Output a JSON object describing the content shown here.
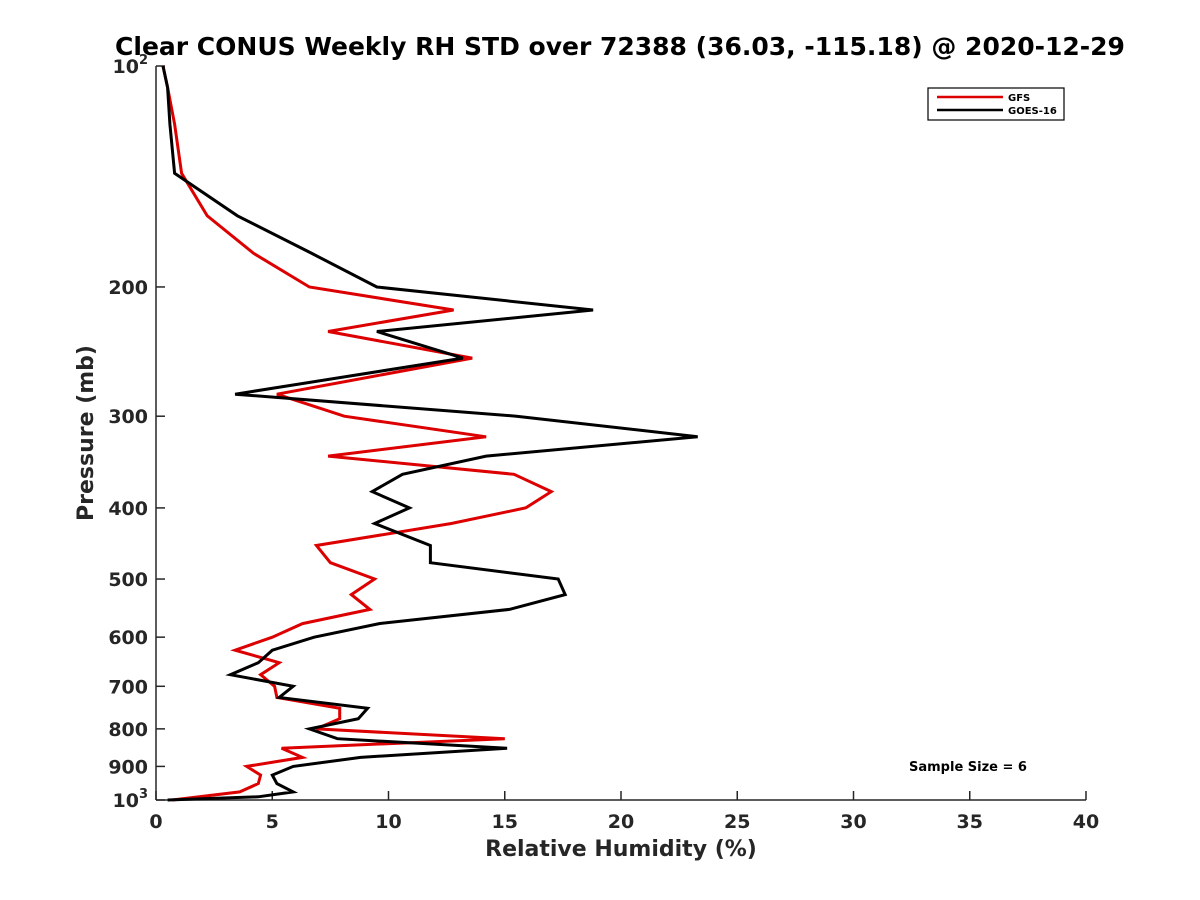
{
  "chart_data": {
    "type": "line",
    "title": "Clear CONUS Weekly RH STD over 72388 (36.03, -115.18) @ 2020-12-29",
    "xlabel": "Relative Humidity (%)",
    "ylabel": "Pressure (mb)",
    "xlim": [
      0,
      40
    ],
    "ylim": [
      100,
      1000
    ],
    "yscale": "log",
    "y_reversed": true,
    "grid": false,
    "legend_position": "top-right",
    "x_ticks": [
      0,
      5,
      10,
      15,
      20,
      25,
      30,
      35,
      40
    ],
    "x_tick_labels": [
      "0",
      "5",
      "10",
      "15",
      "20",
      "25",
      "30",
      "35",
      "40"
    ],
    "y_ticks": [
      100,
      200,
      300,
      400,
      500,
      600,
      700,
      800,
      900,
      1000
    ],
    "y_tick_labels": [
      {
        "base": "10",
        "exp": "2"
      },
      {
        "base": "200",
        "exp": ""
      },
      {
        "base": "300",
        "exp": ""
      },
      {
        "base": "400",
        "exp": ""
      },
      {
        "base": "500",
        "exp": ""
      },
      {
        "base": "600",
        "exp": ""
      },
      {
        "base": "700",
        "exp": ""
      },
      {
        "base": "800",
        "exp": ""
      },
      {
        "base": "900",
        "exp": ""
      },
      {
        "base": "10",
        "exp": "3"
      }
    ],
    "annotation": "Sample Size = 6",
    "series": [
      {
        "name": "GFS",
        "color": "#dd0000",
        "points": [
          [
            0.3,
            100
          ],
          [
            0.5,
            107
          ],
          [
            0.8,
            120
          ],
          [
            1.1,
            140
          ],
          [
            2.2,
            160
          ],
          [
            4.2,
            180
          ],
          [
            6.6,
            200
          ],
          [
            12.8,
            215
          ],
          [
            7.4,
            230
          ],
          [
            13.6,
            250
          ],
          [
            5.2,
            280
          ],
          [
            8.1,
            300
          ],
          [
            14.2,
            320
          ],
          [
            7.4,
            340
          ],
          [
            15.4,
            360
          ],
          [
            17.0,
            380
          ],
          [
            15.9,
            400
          ],
          [
            12.7,
            420
          ],
          [
            6.9,
            450
          ],
          [
            7.5,
            475
          ],
          [
            9.4,
            500
          ],
          [
            8.4,
            525
          ],
          [
            9.2,
            550
          ],
          [
            6.3,
            575
          ],
          [
            5.0,
            600
          ],
          [
            3.4,
            625
          ],
          [
            5.3,
            650
          ],
          [
            4.5,
            675
          ],
          [
            5.1,
            700
          ],
          [
            5.2,
            725
          ],
          [
            7.9,
            750
          ],
          [
            7.9,
            775
          ],
          [
            6.9,
            800
          ],
          [
            15.0,
            825
          ],
          [
            5.4,
            850
          ],
          [
            6.3,
            875
          ],
          [
            3.9,
            900
          ],
          [
            4.5,
            925
          ],
          [
            4.4,
            950
          ],
          [
            3.6,
            975
          ],
          [
            0.7,
            1000
          ]
        ]
      },
      {
        "name": "GOES-16",
        "color": "#000000",
        "points": [
          [
            0.3,
            100
          ],
          [
            0.5,
            107
          ],
          [
            0.6,
            120
          ],
          [
            0.8,
            140
          ],
          [
            3.5,
            160
          ],
          [
            6.7,
            180
          ],
          [
            9.5,
            200
          ],
          [
            18.8,
            215
          ],
          [
            9.5,
            230
          ],
          [
            13.2,
            250
          ],
          [
            3.4,
            280
          ],
          [
            15.5,
            300
          ],
          [
            23.3,
            320
          ],
          [
            14.2,
            340
          ],
          [
            10.6,
            360
          ],
          [
            9.3,
            380
          ],
          [
            10.9,
            400
          ],
          [
            9.4,
            420
          ],
          [
            11.8,
            450
          ],
          [
            11.8,
            475
          ],
          [
            17.3,
            500
          ],
          [
            17.6,
            525
          ],
          [
            15.2,
            550
          ],
          [
            9.6,
            575
          ],
          [
            6.8,
            600
          ],
          [
            5.0,
            625
          ],
          [
            4.4,
            650
          ],
          [
            3.2,
            675
          ],
          [
            5.9,
            700
          ],
          [
            5.3,
            725
          ],
          [
            9.1,
            750
          ],
          [
            8.7,
            775
          ],
          [
            6.6,
            800
          ],
          [
            7.8,
            825
          ],
          [
            15.1,
            850
          ],
          [
            8.8,
            875
          ],
          [
            5.9,
            900
          ],
          [
            5.0,
            925
          ],
          [
            5.2,
            950
          ],
          [
            5.9,
            975
          ],
          [
            4.4,
            990
          ],
          [
            0.5,
            1000
          ]
        ]
      }
    ]
  }
}
